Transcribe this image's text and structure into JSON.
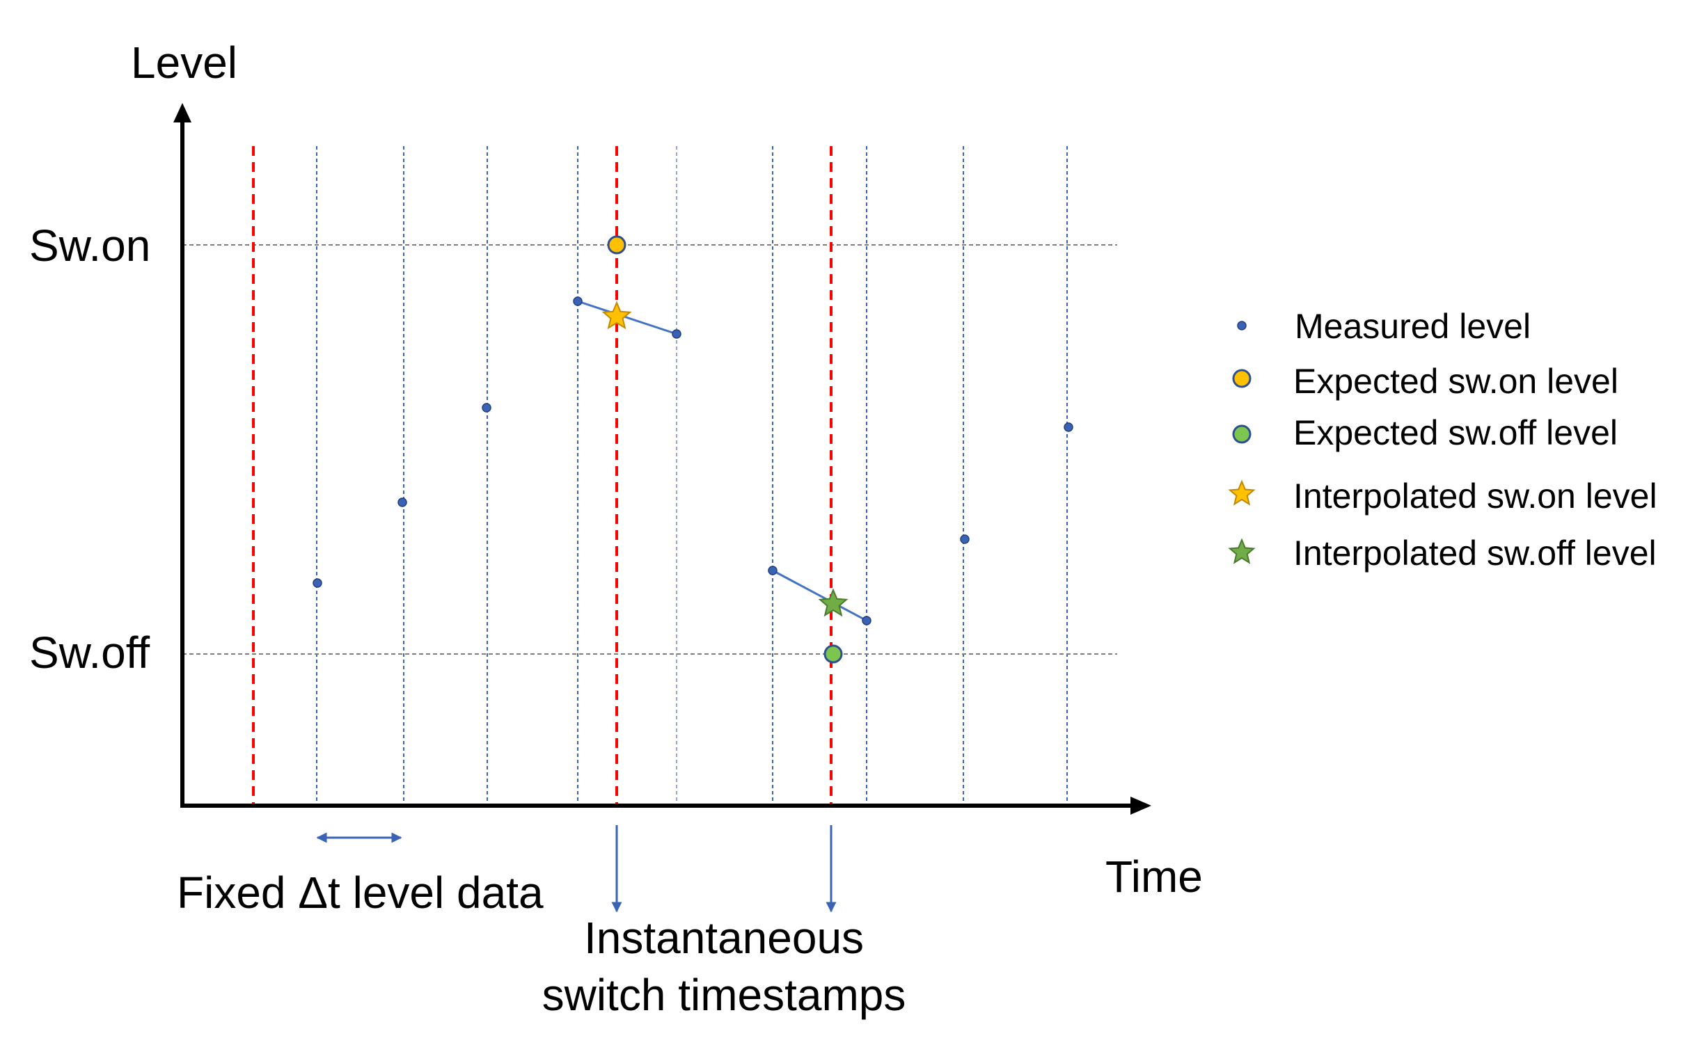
{
  "axes": {
    "y_label": "Level",
    "x_label": "Time",
    "y_ticks": {
      "on": "Sw.on",
      "off": "Sw.off"
    }
  },
  "annotations": {
    "fixed_dt": "Fixed Δt level data",
    "switch_line1": "Instantaneous",
    "switch_line2": "switch timestamps"
  },
  "legend": [
    {
      "label": "Measured level",
      "marker": "small-dot",
      "color": "#3a63b6"
    },
    {
      "label": "Expected sw.on level",
      "marker": "circle",
      "color": "#ffc000"
    },
    {
      "label": "Expected sw.off level",
      "marker": "circle",
      "color": "#7cc64f"
    },
    {
      "label": "Interpolated sw.on level",
      "marker": "star",
      "color": "#ffc000"
    },
    {
      "label": "Interpolated sw.off level",
      "marker": "star",
      "color": "#70ad47"
    }
  ],
  "colors": {
    "axis": "#000000",
    "sample_grid": "#3a63b6",
    "switch_line": "#ff0000",
    "threshold": "#7f7f7f",
    "outline": "#2f4f8f"
  }
}
